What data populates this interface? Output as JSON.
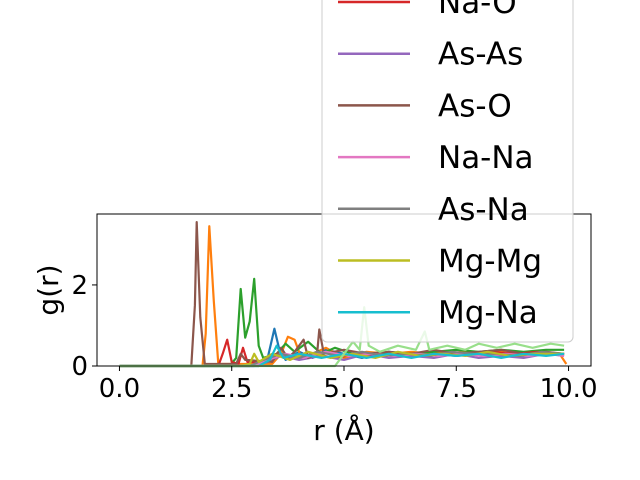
{
  "chart_data": {
    "type": "line",
    "title": "",
    "xlabel": "r (Å)",
    "ylabel": "g(r)",
    "xlim": [
      -0.5,
      10.5
    ],
    "ylim": [
      0,
      3.75
    ],
    "xticks": [
      0.0,
      2.5,
      5.0,
      7.5,
      10.0
    ],
    "xtick_labels": [
      "0.0",
      "2.5",
      "5.0",
      "7.5",
      "10.0"
    ],
    "yticks": [
      0,
      2
    ],
    "ytick_labels": [
      "0",
      "2"
    ],
    "grid": false,
    "legend_position": "upper right (extends above the axes)",
    "legend_partial_label": "Na-O",
    "series": [
      {
        "name": "",
        "color": "#1f77b4",
        "points": [
          [
            0,
            0
          ],
          [
            3.1,
            0
          ],
          [
            3.3,
            0.2
          ],
          [
            3.45,
            0.92
          ],
          [
            3.55,
            0.45
          ],
          [
            3.7,
            0.15
          ],
          [
            4.0,
            0.35
          ],
          [
            4.3,
            0.2
          ],
          [
            4.6,
            0.4
          ],
          [
            5.0,
            0.3
          ],
          [
            5.4,
            0.2
          ],
          [
            6.0,
            0.35
          ],
          [
            6.5,
            0.25
          ],
          [
            7.0,
            0.3
          ],
          [
            7.5,
            0.25
          ],
          [
            8.0,
            0.3
          ],
          [
            8.5,
            0.35
          ],
          [
            9.0,
            0.25
          ],
          [
            9.5,
            0.3
          ],
          [
            9.9,
            0.3
          ]
        ]
      },
      {
        "name": "",
        "color": "#ff7f0e",
        "points": [
          [
            0,
            0
          ],
          [
            1.85,
            0
          ],
          [
            1.92,
            0.8
          ],
          [
            2.0,
            3.45
          ],
          [
            2.1,
            1.6
          ],
          [
            2.2,
            0.05
          ],
          [
            3.4,
            0.05
          ],
          [
            3.6,
            0.3
          ],
          [
            3.75,
            0.72
          ],
          [
            3.9,
            0.65
          ],
          [
            4.05,
            0.2
          ],
          [
            4.3,
            0.3
          ],
          [
            4.6,
            0.45
          ],
          [
            5.0,
            0.2
          ],
          [
            5.5,
            0.35
          ],
          [
            6.0,
            0.3
          ],
          [
            6.5,
            0.35
          ],
          [
            7.0,
            0.3
          ],
          [
            7.5,
            0.4
          ],
          [
            8.0,
            0.3
          ],
          [
            8.5,
            0.35
          ],
          [
            9.0,
            0.3
          ],
          [
            9.5,
            0.35
          ],
          [
            9.8,
            0.3
          ],
          [
            9.95,
            0.05
          ]
        ]
      },
      {
        "name": "",
        "color": "#2ca02c",
        "points": [
          [
            0,
            0
          ],
          [
            2.45,
            0
          ],
          [
            2.6,
            0.2
          ],
          [
            2.7,
            1.9
          ],
          [
            2.8,
            0.7
          ],
          [
            2.9,
            1.1
          ],
          [
            3.0,
            2.15
          ],
          [
            3.1,
            0.5
          ],
          [
            3.2,
            0.2
          ],
          [
            3.5,
            0.3
          ],
          [
            3.7,
            0.55
          ],
          [
            3.9,
            0.35
          ],
          [
            4.2,
            0.6
          ],
          [
            4.5,
            0.3
          ],
          [
            4.8,
            0.45
          ],
          [
            5.2,
            0.3
          ],
          [
            5.6,
            0.25
          ],
          [
            6.0,
            0.35
          ],
          [
            6.5,
            0.3
          ],
          [
            7.0,
            0.35
          ],
          [
            7.5,
            0.4
          ],
          [
            8.0,
            0.35
          ],
          [
            8.5,
            0.4
          ],
          [
            9.0,
            0.35
          ],
          [
            9.5,
            0.4
          ],
          [
            9.9,
            0.4
          ]
        ]
      },
      {
        "name": "Na-O",
        "color": "#d62728",
        "points": [
          [
            0,
            0
          ],
          [
            2.2,
            0
          ],
          [
            2.3,
            0.3
          ],
          [
            2.4,
            0.65
          ],
          [
            2.5,
            0.1
          ],
          [
            2.65,
            0.05
          ],
          [
            2.75,
            0.45
          ],
          [
            2.85,
            0.1
          ],
          [
            3.2,
            0.1
          ],
          [
            3.5,
            0.3
          ],
          [
            3.9,
            0.2
          ],
          [
            4.3,
            0.3
          ],
          [
            4.8,
            0.2
          ],
          [
            5.3,
            0.3
          ],
          [
            5.8,
            0.25
          ],
          [
            6.3,
            0.3
          ],
          [
            6.8,
            0.25
          ],
          [
            7.3,
            0.3
          ],
          [
            7.8,
            0.3
          ],
          [
            8.3,
            0.35
          ],
          [
            8.8,
            0.3
          ],
          [
            9.3,
            0.35
          ],
          [
            9.9,
            0.3
          ]
        ]
      },
      {
        "name": "As-As",
        "color": "#9467bd",
        "points": [
          [
            0,
            0
          ],
          [
            3.0,
            0
          ],
          [
            3.3,
            0.1
          ],
          [
            3.6,
            0.25
          ],
          [
            4.0,
            0.15
          ],
          [
            4.5,
            0.25
          ],
          [
            5.0,
            0.15
          ],
          [
            5.5,
            0.3
          ],
          [
            6.0,
            0.2
          ],
          [
            6.5,
            0.25
          ],
          [
            7.0,
            0.2
          ],
          [
            7.5,
            0.3
          ],
          [
            8.0,
            0.2
          ],
          [
            8.5,
            0.25
          ],
          [
            9.0,
            0.2
          ],
          [
            9.5,
            0.3
          ],
          [
            9.9,
            0.25
          ]
        ]
      },
      {
        "name": "As-O",
        "color": "#8c564b",
        "points": [
          [
            0,
            0
          ],
          [
            1.6,
            0
          ],
          [
            1.68,
            1.5
          ],
          [
            1.72,
            3.55
          ],
          [
            1.8,
            1.2
          ],
          [
            1.9,
            0.05
          ],
          [
            2.6,
            0.05
          ],
          [
            2.7,
            0.3
          ],
          [
            2.8,
            0.15
          ],
          [
            3.4,
            0.1
          ],
          [
            3.6,
            0.45
          ],
          [
            3.75,
            0.2
          ],
          [
            3.9,
            0.35
          ],
          [
            4.1,
            0.65
          ],
          [
            4.2,
            0.2
          ],
          [
            4.4,
            0.3
          ],
          [
            4.45,
            0.9
          ],
          [
            4.55,
            0.3
          ],
          [
            5.0,
            0.4
          ],
          [
            5.5,
            0.3
          ],
          [
            6.0,
            0.35
          ],
          [
            6.5,
            0.3
          ],
          [
            7.0,
            0.4
          ],
          [
            7.5,
            0.3
          ],
          [
            8.0,
            0.35
          ],
          [
            8.5,
            0.4
          ],
          [
            9.0,
            0.3
          ],
          [
            9.5,
            0.35
          ],
          [
            9.9,
            0.3
          ]
        ]
      },
      {
        "name": "Na-Na",
        "color": "#e377c2",
        "points": [
          [
            0,
            0
          ],
          [
            3.0,
            0
          ],
          [
            3.3,
            0.15
          ],
          [
            3.7,
            0.3
          ],
          [
            4.1,
            0.2
          ],
          [
            4.6,
            0.35
          ],
          [
            5.1,
            0.25
          ],
          [
            5.6,
            0.3
          ],
          [
            6.1,
            0.25
          ],
          [
            6.6,
            0.3
          ],
          [
            7.1,
            0.25
          ],
          [
            7.6,
            0.3
          ],
          [
            8.1,
            0.25
          ],
          [
            8.6,
            0.3
          ],
          [
            9.1,
            0.25
          ],
          [
            9.6,
            0.3
          ],
          [
            9.9,
            0.25
          ]
        ]
      },
      {
        "name": "As-Na",
        "color": "#7f7f7f",
        "points": [
          [
            0,
            0
          ],
          [
            2.9,
            0
          ],
          [
            3.2,
            0.15
          ],
          [
            3.6,
            0.3
          ],
          [
            4.0,
            0.2
          ],
          [
            4.4,
            0.35
          ],
          [
            4.9,
            0.25
          ],
          [
            5.4,
            0.35
          ],
          [
            5.9,
            0.25
          ],
          [
            6.4,
            0.3
          ],
          [
            6.9,
            0.25
          ],
          [
            7.4,
            0.35
          ],
          [
            7.9,
            0.3
          ],
          [
            8.4,
            0.3
          ],
          [
            8.9,
            0.25
          ],
          [
            9.4,
            0.35
          ],
          [
            9.9,
            0.3
          ]
        ]
      },
      {
        "name": "Mg-Mg",
        "color": "#bcbd22",
        "points": [
          [
            0,
            0
          ],
          [
            2.7,
            0
          ],
          [
            2.9,
            0.05
          ],
          [
            3.0,
            0.3
          ],
          [
            3.1,
            0.1
          ],
          [
            3.4,
            0.3
          ],
          [
            3.8,
            0.15
          ],
          [
            4.2,
            0.35
          ],
          [
            4.7,
            0.2
          ],
          [
            5.2,
            0.3
          ],
          [
            5.7,
            0.2
          ],
          [
            6.2,
            0.35
          ],
          [
            6.7,
            0.25
          ],
          [
            7.2,
            0.3
          ],
          [
            7.7,
            0.25
          ],
          [
            8.2,
            0.35
          ],
          [
            8.7,
            0.25
          ],
          [
            9.2,
            0.3
          ],
          [
            9.7,
            0.3
          ],
          [
            9.9,
            0.3
          ]
        ]
      },
      {
        "name": "Mg-Na",
        "color": "#17becf",
        "points": [
          [
            0,
            0
          ],
          [
            3.1,
            0
          ],
          [
            3.35,
            0.15
          ],
          [
            3.5,
            0.5
          ],
          [
            3.65,
            0.2
          ],
          [
            4.0,
            0.3
          ],
          [
            4.5,
            0.2
          ],
          [
            5.0,
            0.3
          ],
          [
            5.5,
            0.2
          ],
          [
            6.0,
            0.3
          ],
          [
            6.5,
            0.2
          ],
          [
            7.0,
            0.3
          ],
          [
            7.5,
            0.25
          ],
          [
            8.0,
            0.3
          ],
          [
            8.5,
            0.2
          ],
          [
            9.0,
            0.3
          ],
          [
            9.5,
            0.25
          ],
          [
            9.9,
            0.3
          ]
        ]
      },
      {
        "name": "",
        "color": "#98df8a",
        "points": [
          [
            0,
            0
          ],
          [
            4.8,
            0
          ],
          [
            5.0,
            0.3
          ],
          [
            5.2,
            0.6
          ],
          [
            5.35,
            0.4
          ],
          [
            5.45,
            1.45
          ],
          [
            5.55,
            0.5
          ],
          [
            5.8,
            0.35
          ],
          [
            6.2,
            0.5
          ],
          [
            6.6,
            0.4
          ],
          [
            6.8,
            0.85
          ],
          [
            6.9,
            0.4
          ],
          [
            7.3,
            0.5
          ],
          [
            7.7,
            0.4
          ],
          [
            8.0,
            0.55
          ],
          [
            8.4,
            0.45
          ],
          [
            8.8,
            0.55
          ],
          [
            9.2,
            0.45
          ],
          [
            9.6,
            0.55
          ],
          [
            9.9,
            0.5
          ]
        ]
      }
    ]
  }
}
